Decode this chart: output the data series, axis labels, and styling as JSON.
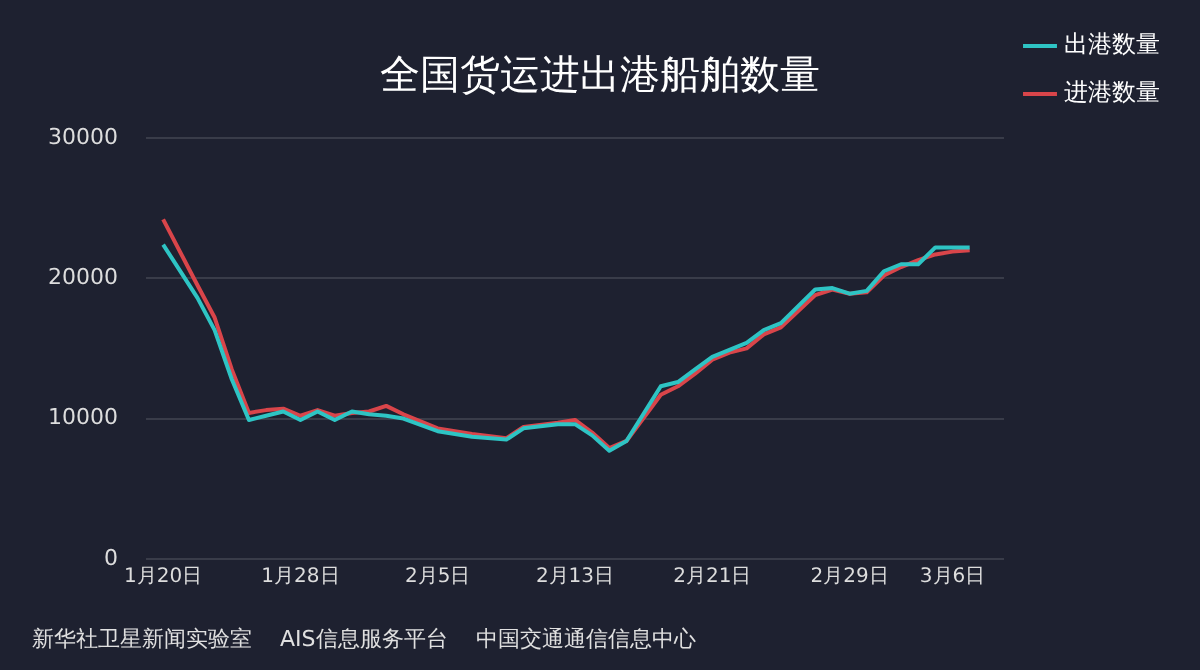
{
  "chart_data": {
    "type": "line",
    "title": "全国货运进出港船舶数量",
    "x": [
      "--01-20",
      "--01-22",
      "--01-23",
      "--01-24",
      "--01-25",
      "--01-26",
      "--01-27",
      "--01-28",
      "--01-29",
      "--01-30",
      "--01-31",
      "--02-01",
      "--02-02",
      "--02-03",
      "--02-05",
      "--02-07",
      "--02-09",
      "--02-10",
      "--02-12",
      "--02-13",
      "--02-14",
      "--02-15",
      "--02-16",
      "--02-18",
      "--02-19",
      "--02-20",
      "--02-21",
      "--02-22",
      "--02-23",
      "--02-24",
      "--02-25",
      "--02-27",
      "--02-28",
      "--02-29",
      "--03-01",
      "--03-02",
      "--03-03",
      "--03-04",
      "--03-05",
      "--03-06",
      "--03-07"
    ],
    "series": [
      {
        "name": "出港数量",
        "color": "#2ec4c4",
        "values": [
          22400,
          18600,
          16300,
          12800,
          9900,
          10200,
          10500,
          9900,
          10500,
          9900,
          10500,
          10300,
          10200,
          10000,
          9100,
          8700,
          8500,
          9300,
          9600,
          9600,
          8800,
          7700,
          8400,
          12300,
          12600,
          13500,
          14400,
          14900,
          15400,
          16300,
          16800,
          19200,
          19300,
          18900,
          19100,
          20500,
          21000,
          21000,
          22200,
          22200,
          22200
        ]
      },
      {
        "name": "进港数量",
        "color": "#d9454a",
        "values": [
          24200,
          19500,
          17200,
          13500,
          10400,
          10600,
          10700,
          10200,
          10600,
          10200,
          10400,
          10500,
          10900,
          10300,
          9300,
          8900,
          8600,
          9400,
          9700,
          9900,
          9000,
          7900,
          8400,
          11700,
          12300,
          13200,
          14200,
          14700,
          15000,
          16000,
          16500,
          18800,
          19200,
          18900,
          19000,
          20200,
          20800,
          21300,
          21700,
          21900,
          22000
        ]
      }
    ],
    "xlim": [
      "--01-19",
      "--03-09"
    ],
    "xticks": [
      {
        "value": "--01-20",
        "label": "1月20日"
      },
      {
        "value": "--01-28",
        "label": "1月28日"
      },
      {
        "value": "--02-05",
        "label": "2月5日"
      },
      {
        "value": "--02-13",
        "label": "2月13日"
      },
      {
        "value": "--02-21",
        "label": "2月21日"
      },
      {
        "value": "--02-29",
        "label": "2月29日"
      },
      {
        "value": "--03-06",
        "label": "3月6日"
      }
    ],
    "ylim": [
      0,
      30000
    ],
    "yticks": [
      0,
      10000,
      20000,
      30000
    ],
    "grid": "y",
    "legend": "right",
    "marker": "none",
    "line_style": "solid",
    "annotations": [
      "新华社卫星新闻实验室",
      "AIS信息服务平台",
      "中国交通通信信息中心"
    ]
  }
}
